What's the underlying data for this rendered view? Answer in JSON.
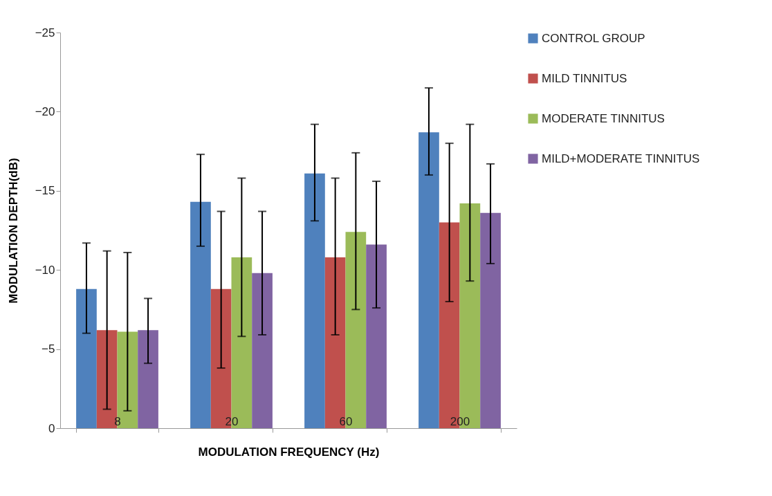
{
  "chart_data": {
    "type": "bar",
    "xlabel": "MODULATION FREQUENCY (Hz)",
    "ylabel": "MODULATION  DEPTH(dB)",
    "categories": [
      "8",
      "20",
      "60",
      "200"
    ],
    "series": [
      {
        "name": "CONTROL GROUP",
        "color": "#4f81bd",
        "values": [
          -8.8,
          -14.3,
          -16.1,
          -18.7
        ],
        "errors": [
          [
            -11.7,
            -6.0
          ],
          [
            -17.3,
            -11.5
          ],
          [
            -19.2,
            -13.1
          ],
          [
            -21.5,
            -16.0
          ]
        ]
      },
      {
        "name": "MILD TINNITUS",
        "color": "#c0504d",
        "values": [
          -6.2,
          -8.8,
          -10.8,
          -13.0
        ],
        "errors": [
          [
            -11.2,
            -1.2
          ],
          [
            -13.7,
            -3.8
          ],
          [
            -15.8,
            -5.9
          ],
          [
            -18.0,
            -8.0
          ]
        ]
      },
      {
        "name": "MODERATE TINNITUS",
        "color": "#9bbb59",
        "values": [
          -6.1,
          -10.8,
          -12.4,
          -14.2
        ],
        "errors": [
          [
            -11.1,
            -1.1
          ],
          [
            -15.8,
            -5.8
          ],
          [
            -17.4,
            -7.5
          ],
          [
            -19.2,
            -9.3
          ]
        ]
      },
      {
        "name": "MILD+MODERATE TINNITUS",
        "color": "#8064a2",
        "values": [
          -6.2,
          -9.8,
          -11.6,
          -13.6
        ],
        "errors": [
          [
            -8.2,
            -4.1
          ],
          [
            -13.7,
            -5.9
          ],
          [
            -15.6,
            -7.6
          ],
          [
            -16.7,
            -10.4
          ]
        ]
      }
    ],
    "ylim": [
      0,
      -25
    ],
    "yticks": [
      0,
      -5,
      -10,
      -15,
      -20,
      -25
    ],
    "grid": false,
    "legend": "right"
  }
}
